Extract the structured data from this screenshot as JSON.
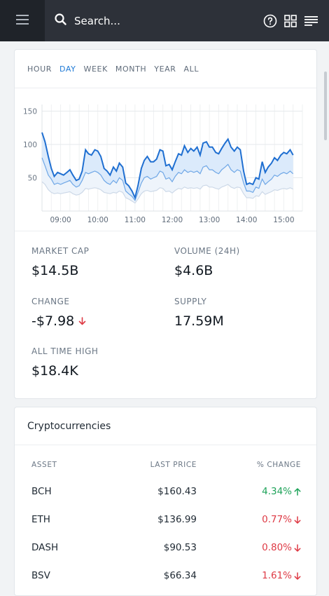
{
  "topbar": {
    "menu_icon": "hamburger-icon",
    "search_placeholder": "Search...",
    "icons": [
      "help-icon",
      "grid-icon",
      "list-icon"
    ]
  },
  "colors": {
    "topbar_bg": "#2d3139",
    "menu_bg": "#1f2329",
    "accent_blue": "#1f7ad6",
    "positive": "#1fa35a",
    "negative": "#de3a45"
  },
  "range_tabs": {
    "items": [
      "HOUR",
      "DAY",
      "WEEK",
      "MONTH",
      "YEAR",
      "ALL"
    ],
    "active": "DAY"
  },
  "chart_data": {
    "type": "area",
    "x_ticks": [
      "09:00",
      "10:00",
      "11:00",
      "12:00",
      "13:00",
      "14:00",
      "15:00"
    ],
    "y_ticks": [
      150,
      100,
      50
    ],
    "ylim": [
      0,
      160
    ],
    "xlim": [
      8.5,
      15.5
    ],
    "grid": true,
    "series": [
      {
        "role": "primary",
        "x": [
          8.5,
          8.58,
          8.67,
          8.75,
          8.83,
          8.92,
          9.0,
          9.08,
          9.17,
          9.25,
          9.33,
          9.42,
          9.5,
          9.58,
          9.67,
          9.75,
          9.83,
          9.92,
          10.0,
          10.08,
          10.17,
          10.25,
          10.33,
          10.42,
          10.5,
          10.58,
          10.67,
          10.75,
          10.83,
          10.92,
          11.0,
          11.08,
          11.17,
          11.25,
          11.33,
          11.42,
          11.5,
          11.58,
          11.67,
          11.75,
          11.83,
          11.92,
          12.0,
          12.08,
          12.17,
          12.25,
          12.33,
          12.42,
          12.5,
          12.58,
          12.67,
          12.75,
          12.83,
          12.92,
          13.0,
          13.08,
          13.17,
          13.25,
          13.33,
          13.42,
          13.5,
          13.58,
          13.67,
          13.75,
          13.83,
          13.92,
          14.0,
          14.08,
          14.17,
          14.25,
          14.33,
          14.42,
          14.5,
          14.58,
          14.67,
          14.75,
          14.83,
          14.92,
          15.0,
          15.08,
          15.17,
          15.25
        ],
        "values": [
          118,
          104,
          82,
          64,
          52,
          58,
          56,
          54,
          58,
          62,
          54,
          46,
          48,
          60,
          92,
          86,
          84,
          92,
          90,
          82,
          64,
          60,
          54,
          66,
          60,
          72,
          66,
          42,
          38,
          30,
          20,
          38,
          64,
          76,
          82,
          74,
          74,
          78,
          92,
          90,
          68,
          70,
          62,
          74,
          86,
          84,
          98,
          88,
          94,
          90,
          96,
          84,
          102,
          104,
          96,
          96,
          88,
          86,
          94,
          102,
          108,
          96,
          90,
          96,
          92,
          60,
          40,
          42,
          40,
          50,
          48,
          74,
          58,
          66,
          72,
          80,
          76,
          84,
          88,
          86,
          92,
          84
        ]
      },
      {
        "role": "middle",
        "x": [
          8.5,
          8.58,
          8.67,
          8.75,
          8.83,
          8.92,
          9.0,
          9.08,
          9.17,
          9.25,
          9.33,
          9.42,
          9.5,
          9.58,
          9.67,
          9.75,
          9.83,
          9.92,
          10.0,
          10.08,
          10.17,
          10.25,
          10.33,
          10.42,
          10.5,
          10.58,
          10.67,
          10.75,
          10.83,
          10.92,
          11.0,
          11.08,
          11.17,
          11.25,
          11.33,
          11.42,
          11.5,
          11.58,
          11.67,
          11.75,
          11.83,
          11.92,
          12.0,
          12.08,
          12.17,
          12.25,
          12.33,
          12.42,
          12.5,
          12.58,
          12.67,
          12.75,
          12.83,
          12.92,
          13.0,
          13.08,
          13.17,
          13.25,
          13.33,
          13.42,
          13.5,
          13.58,
          13.67,
          13.75,
          13.83,
          13.92,
          14.0,
          14.08,
          14.17,
          14.25,
          14.33,
          14.42,
          14.5,
          14.58,
          14.67,
          14.75,
          14.83,
          14.92,
          15.0,
          15.08,
          15.17,
          15.25
        ],
        "values": [
          80,
          68,
          54,
          48,
          40,
          42,
          40,
          42,
          44,
          46,
          40,
          36,
          38,
          46,
          58,
          56,
          58,
          60,
          58,
          54,
          46,
          42,
          40,
          46,
          42,
          50,
          46,
          30,
          26,
          22,
          16,
          28,
          42,
          50,
          52,
          48,
          50,
          52,
          60,
          58,
          48,
          50,
          44,
          52,
          58,
          56,
          62,
          58,
          60,
          58,
          60,
          56,
          66,
          68,
          62,
          62,
          58,
          56,
          62,
          66,
          70,
          62,
          58,
          62,
          60,
          42,
          30,
          30,
          28,
          36,
          34,
          48,
          40,
          44,
          48,
          54,
          52,
          56,
          58,
          56,
          60,
          56
        ]
      },
      {
        "role": "lower",
        "x": [
          8.5,
          8.58,
          8.67,
          8.75,
          8.83,
          8.92,
          9.0,
          9.08,
          9.17,
          9.25,
          9.33,
          9.42,
          9.5,
          9.58,
          9.67,
          9.75,
          9.83,
          9.92,
          10.0,
          10.08,
          10.17,
          10.25,
          10.33,
          10.42,
          10.5,
          10.58,
          10.67,
          10.75,
          10.83,
          10.92,
          11.0,
          11.08,
          11.17,
          11.25,
          11.33,
          11.42,
          11.5,
          11.58,
          11.67,
          11.75,
          11.83,
          11.92,
          12.0,
          12.08,
          12.17,
          12.25,
          12.33,
          12.42,
          12.5,
          12.58,
          12.67,
          12.75,
          12.83,
          12.92,
          13.0,
          13.08,
          13.17,
          13.25,
          13.33,
          13.42,
          13.5,
          13.58,
          13.67,
          13.75,
          13.83,
          13.92,
          14.0,
          14.08,
          14.17,
          14.25,
          14.33,
          14.42,
          14.5,
          14.58,
          14.67,
          14.75,
          14.83,
          14.92,
          15.0,
          15.08,
          15.17,
          15.25
        ],
        "values": [
          44,
          40,
          32,
          28,
          26,
          27,
          26,
          27,
          28,
          29,
          26,
          24,
          25,
          28,
          34,
          33,
          34,
          35,
          34,
          32,
          28,
          27,
          26,
          28,
          27,
          30,
          28,
          20,
          18,
          15,
          12,
          18,
          26,
          30,
          31,
          29,
          30,
          31,
          35,
          34,
          29,
          30,
          27,
          31,
          34,
          33,
          36,
          34,
          35,
          34,
          35,
          33,
          38,
          39,
          36,
          36,
          34,
          33,
          36,
          38,
          40,
          36,
          34,
          36,
          35,
          26,
          20,
          20,
          19,
          23,
          22,
          29,
          25,
          27,
          29,
          32,
          31,
          33,
          34,
          33,
          35,
          33
        ]
      }
    ]
  },
  "stats": {
    "market_cap": {
      "label": "MARKET CAP",
      "value": "$14.5B"
    },
    "volume": {
      "label": "VOLUME (24H)",
      "value": "$4.6B"
    },
    "change": {
      "label": "CHANGE",
      "value": "-$7.98",
      "direction": "down"
    },
    "supply": {
      "label": "SUPPLY",
      "value": "17.59M"
    },
    "ath": {
      "label": "ALL TIME HIGH",
      "value": "$18.4K"
    }
  },
  "crypto": {
    "title": "Cryptocurrencies",
    "headers": {
      "asset": "ASSET",
      "price": "LAST PRICE",
      "change": "% CHANGE"
    },
    "rows": [
      {
        "asset": "BCH",
        "price": "$160.43",
        "change": "4.34%",
        "direction": "up"
      },
      {
        "asset": "ETH",
        "price": "$136.99",
        "change": "0.77%",
        "direction": "down"
      },
      {
        "asset": "DASH",
        "price": "$90.53",
        "change": "0.80%",
        "direction": "down"
      },
      {
        "asset": "BSV",
        "price": "$66.34",
        "change": "1.61%",
        "direction": "down"
      }
    ]
  }
}
